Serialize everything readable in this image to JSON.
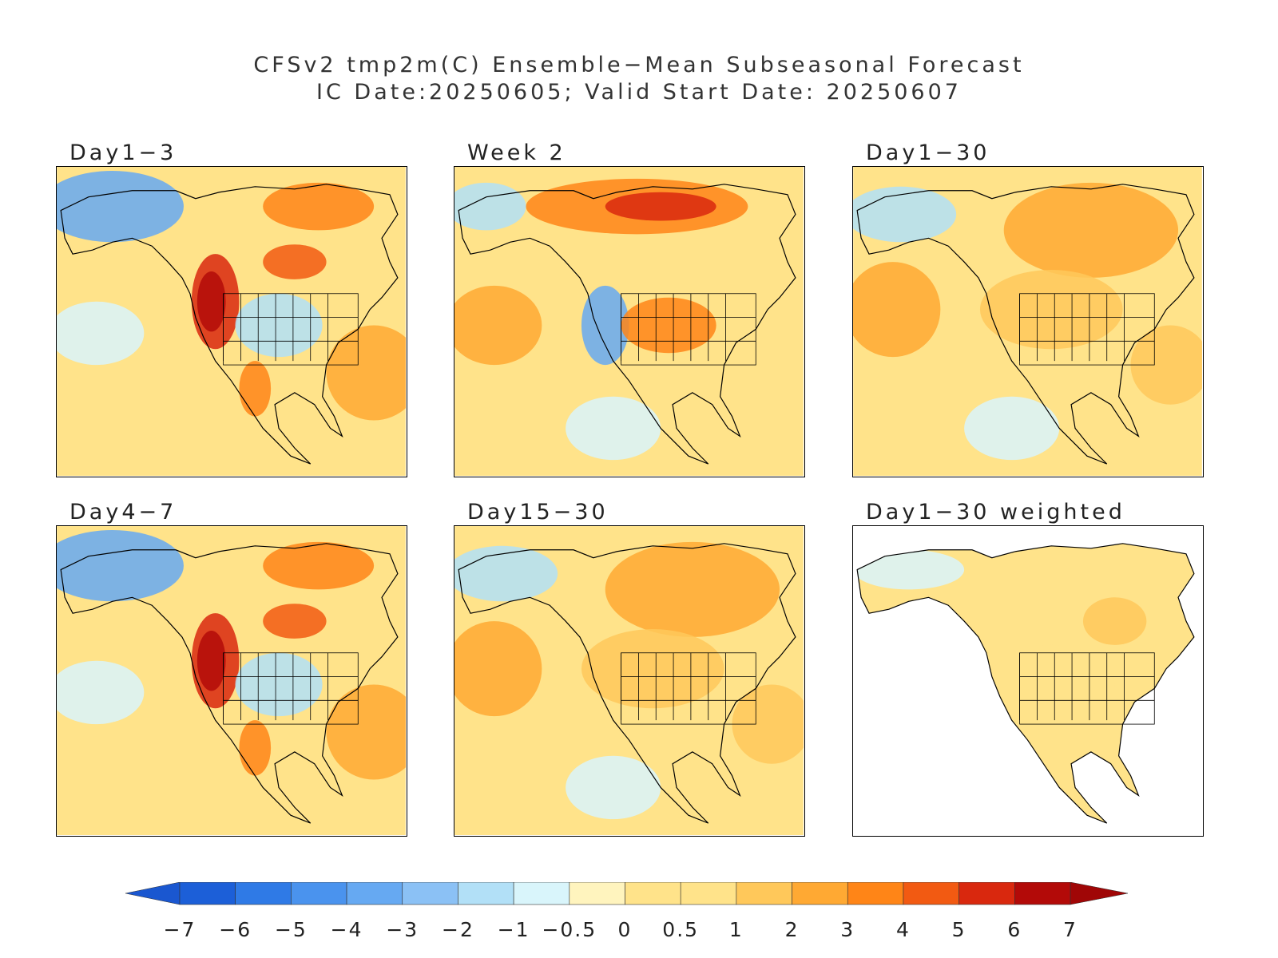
{
  "header": {
    "title_line1": "CFSv2 tmp2m(C) Ensemble−Mean Subseasonal Forecast",
    "title_line2": "IC Date:20250605; Valid Start Date: 20250607"
  },
  "panels": [
    {
      "label": "Day1−3",
      "mean_anomaly_color": "#ffe38a",
      "pattern": "west-warm-alaska-cold"
    },
    {
      "label": "Week 2",
      "mean_anomaly_color": "#ffe38a",
      "pattern": "canada-warm-west-cold"
    },
    {
      "label": "Day1−30",
      "mean_anomaly_color": "#fff0b0",
      "pattern": "broad-warm"
    },
    {
      "label": "Day4−7",
      "mean_anomaly_color": "#ffe38a",
      "pattern": "west-warm-alaska-cold"
    },
    {
      "label": "Day15−30",
      "mean_anomaly_color": "#fff0b0",
      "pattern": "broad-warm"
    },
    {
      "label": "Day1−30 weighted",
      "mean_anomaly_color": "#ffffff",
      "pattern": "land-only-weighted"
    }
  ],
  "colorbar": {
    "labels": [
      "−7",
      "−6",
      "−5",
      "−4",
      "−3",
      "−2",
      "−1",
      "−0.5",
      "0",
      "0.5",
      "1",
      "2",
      "3",
      "4",
      "5",
      "6",
      "7"
    ],
    "colors": [
      "#1c5fd8",
      "#2f7ae6",
      "#4a93ee",
      "#66a9f2",
      "#8bc1f5",
      "#b2e0f7",
      "#d9f5fb",
      "#fff4be",
      "#ffe38a",
      "#ffc85a",
      "#ffa933",
      "#ff8517",
      "#f25a12",
      "#d9280e",
      "#b30a08"
    ],
    "low_extend_color": "#1a57d0",
    "high_extend_color": "#a00606"
  }
}
